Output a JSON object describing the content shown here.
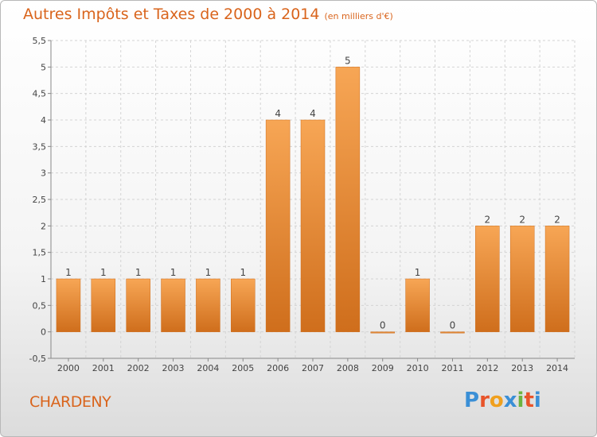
{
  "header": {
    "title": "Autres Impôts et Taxes de 2000 à 2014",
    "unit": "(en milliers d'€)"
  },
  "footer": {
    "commune": "CHARDENY",
    "brand": "Proxiti",
    "brand_colors": [
      "#3a8fd6",
      "#e8542a",
      "#f0a01e",
      "#3a8fd6",
      "#6cb33f",
      "#e8542a",
      "#3a8fd6"
    ]
  },
  "colors": {
    "bar_light": "#f7a655",
    "bar_dark": "#cf6e1c",
    "accent": "#d9641c",
    "grid": "#d4d4d4"
  },
  "chart_data": {
    "type": "bar",
    "title": "Autres Impôts et Taxes de 2000 à 2014",
    "subtitle": "(en milliers d'€)",
    "categories": [
      "2000",
      "2001",
      "2002",
      "2003",
      "2004",
      "2005",
      "2006",
      "2007",
      "2008",
      "2009",
      "2010",
      "2011",
      "2012",
      "2013",
      "2014"
    ],
    "values": [
      1,
      1,
      1,
      1,
      1,
      1,
      4,
      4,
      5,
      0,
      1,
      0,
      2,
      2,
      2
    ],
    "value_labels": [
      "1",
      "1",
      "1",
      "1",
      "1",
      "1",
      "4",
      "4",
      "5",
      "0",
      "1",
      "0",
      "2",
      "2",
      "2"
    ],
    "ylim": [
      -0.5,
      5.5
    ],
    "yticks": [
      -0.5,
      0,
      0.5,
      1,
      1.5,
      2,
      2.5,
      3,
      3.5,
      4,
      4.5,
      5,
      5.5
    ],
    "ytick_labels": [
      "-0,5",
      "0",
      "0,5",
      "1",
      "1,5",
      "2",
      "2,5",
      "3",
      "3,5",
      "4",
      "4,5",
      "5",
      "5,5"
    ],
    "xlabel": "",
    "ylabel": "",
    "grid": true
  }
}
